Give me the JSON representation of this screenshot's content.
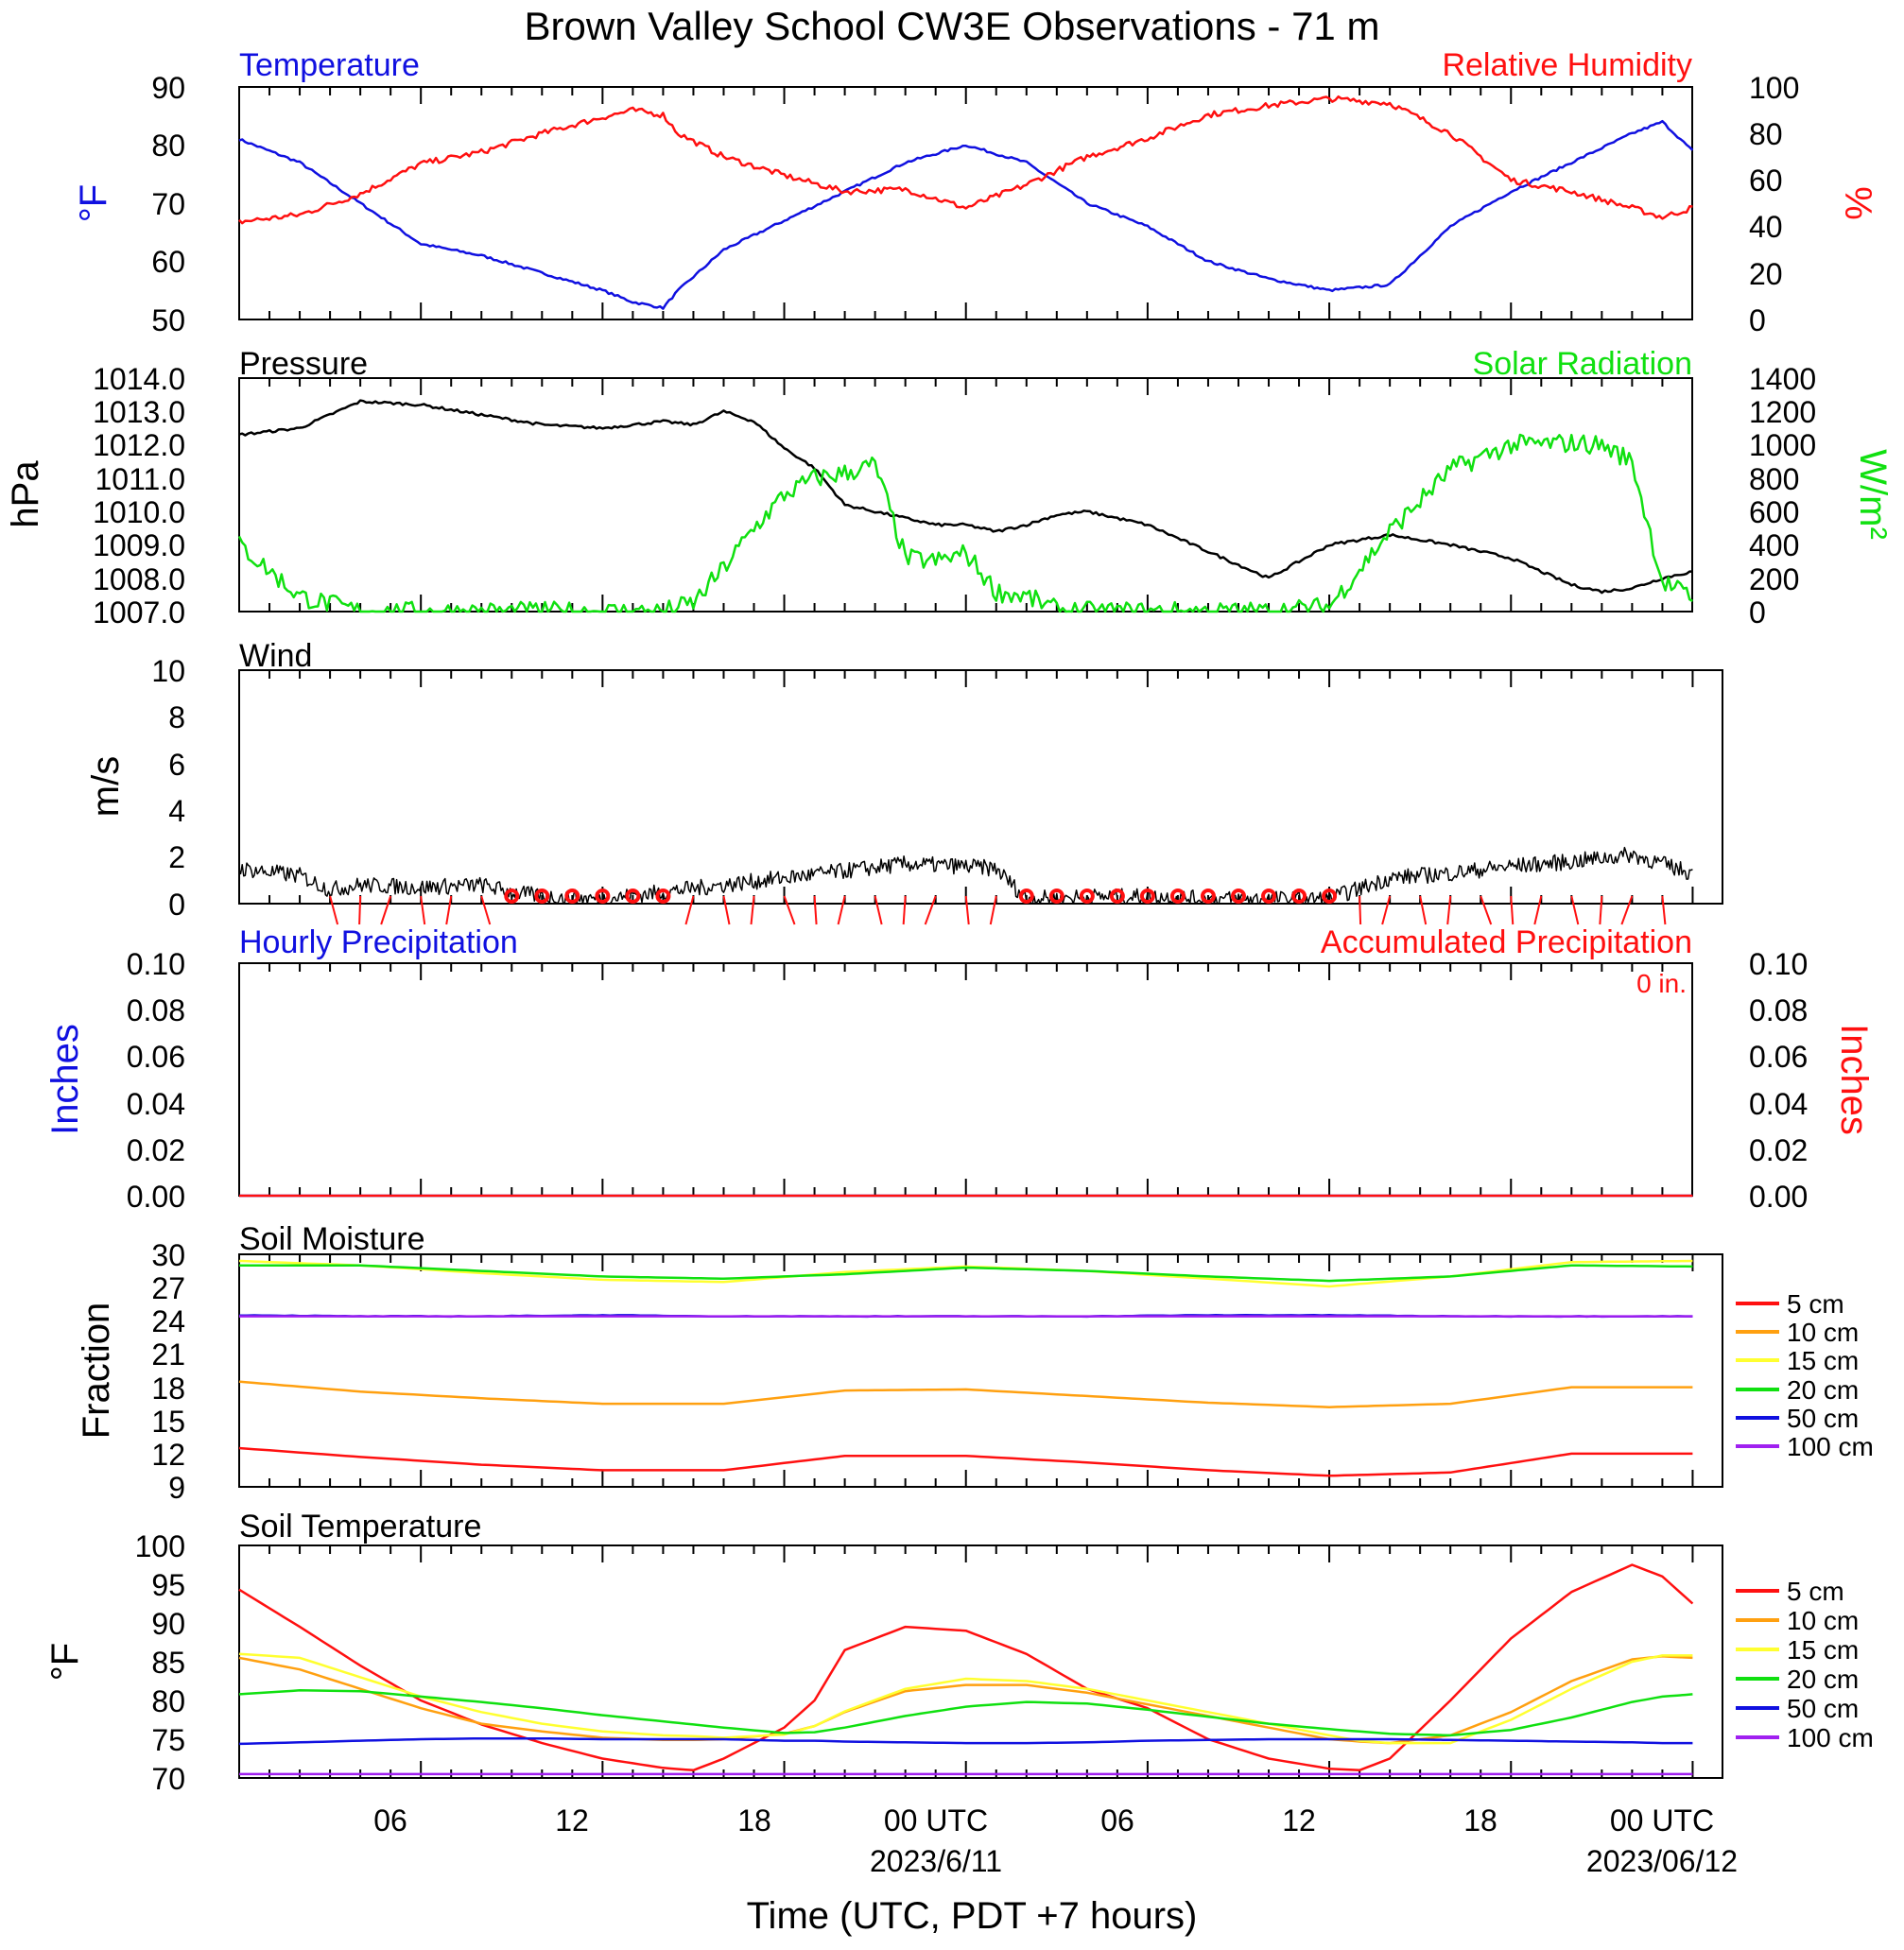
{
  "title": "Brown Valley School CW3E Observations - 71 m",
  "xlabel": "Time (UTC, PDT +7 hours)",
  "x_ticks": [
    "06",
    "12",
    "18",
    "00 UTC",
    "06",
    "12",
    "18",
    "00 UTC"
  ],
  "date_labels": [
    "2023/6/11",
    "2023/06/12"
  ],
  "panels": {
    "temp_rh": {
      "left_title": "Temperature",
      "right_title": "Relative Humidity",
      "left_unit": "°F",
      "right_unit": "%",
      "left_ticks": [
        "90",
        "80",
        "70",
        "60",
        "50"
      ],
      "right_ticks": [
        "100",
        "80",
        "60",
        "40",
        "20",
        "0"
      ]
    },
    "pressure": {
      "left_title": "Pressure",
      "right_title": "Solar Radiation",
      "left_unit": "hPa",
      "right_unit": "W/m²",
      "left_ticks": [
        "1014.0",
        "1013.0",
        "1012.0",
        "1011.0",
        "1010.0",
        "1009.0",
        "1008.0",
        "1007.0"
      ],
      "right_ticks": [
        "1400",
        "1200",
        "1000",
        "800",
        "600",
        "400",
        "200",
        "0"
      ]
    },
    "wind": {
      "left_title": "Wind",
      "left_unit": "m/s",
      "left_ticks": [
        "10",
        "8",
        "6",
        "4",
        "2",
        "0"
      ]
    },
    "precip": {
      "left_title": "Hourly Precipitation",
      "right_title": "Accumulated Precipitation",
      "annotation": "0 in.",
      "left_unit": "Inches",
      "right_unit": "Inches",
      "left_ticks": [
        "0.10",
        "0.08",
        "0.06",
        "0.04",
        "0.02",
        "0.00"
      ],
      "right_ticks": [
        "0.10",
        "0.08",
        "0.06",
        "0.04",
        "0.02",
        "0.00"
      ]
    },
    "soil_moisture": {
      "left_title": "Soil Moisture",
      "left_unit": "Fraction",
      "left_ticks": [
        "30",
        "27",
        "24",
        "21",
        "18",
        "15",
        "12",
        "9"
      ],
      "legend": [
        "5 cm",
        "10 cm",
        "15 cm",
        "20 cm",
        "50 cm",
        "100 cm"
      ]
    },
    "soil_temp": {
      "left_title": "Soil Temperature",
      "left_unit": "°F",
      "left_ticks": [
        "100",
        "95",
        "90",
        "85",
        "80",
        "75",
        "70"
      ],
      "legend": [
        "5 cm",
        "10 cm",
        "15 cm",
        "20 cm",
        "50 cm",
        "100 cm"
      ]
    }
  },
  "colors": {
    "temperature": "#1010e0",
    "rh": "#ff1010",
    "pressure": "#000000",
    "solar": "#10e010",
    "wind": "#000000",
    "barb": "#ff1010",
    "precip_hourly": "#1010e0",
    "precip_accum": "#ff1010",
    "depth": [
      "#ff1010",
      "#ffa010",
      "#ffff30",
      "#10e010",
      "#1010e0",
      "#a020f0"
    ]
  },
  "chart_data": [
    {
      "type": "line",
      "name": "temperature_rh",
      "x_hours": [
        0,
        2,
        4,
        6,
        8,
        10,
        12,
        13,
        14,
        14.5,
        16,
        18,
        20,
        22,
        24,
        26,
        28,
        30,
        32,
        34,
        36,
        38,
        40,
        42,
        44,
        46,
        47,
        48
      ],
      "series": [
        {
          "name": "Temperature",
          "axis": "left",
          "ylim": [
            50,
            90
          ],
          "values": [
            81,
            77,
            70,
            63,
            61,
            58,
            55,
            53,
            52,
            55,
            62,
            67,
            72,
            77,
            80,
            77,
            70,
            66,
            60,
            57,
            55,
            56,
            66,
            72,
            77,
            82,
            84,
            79
          ]
        },
        {
          "name": "Relative Humidity",
          "axis": "right",
          "ylim": [
            0,
            100
          ],
          "values": [
            42,
            45,
            54,
            67,
            72,
            80,
            87,
            90,
            88,
            80,
            70,
            62,
            55,
            56,
            48,
            58,
            70,
            78,
            88,
            92,
            95,
            93,
            80,
            60,
            55,
            48,
            44,
            48
          ]
        }
      ]
    },
    {
      "type": "line",
      "name": "pressure_solar",
      "x_hours": [
        0,
        2,
        4,
        6,
        8,
        10,
        12,
        14,
        15,
        16,
        17,
        18,
        19,
        20,
        21,
        22,
        23,
        24,
        25,
        26,
        27,
        28,
        30,
        32,
        34,
        36,
        38,
        40,
        42,
        44,
        45,
        46,
        47,
        48
      ],
      "series": [
        {
          "name": "Pressure",
          "axis": "left",
          "ylim": [
            1007,
            1014
          ],
          "values": [
            1012.3,
            1012.5,
            1013.3,
            1013.2,
            1012.9,
            1012.6,
            1012.5,
            1012.7,
            1012.6,
            1013.0,
            1012.7,
            1011.9,
            1011.3,
            1010.2,
            1010.0,
            1009.8,
            1009.6,
            1009.6,
            1009.4,
            1009.6,
            1009.9,
            1010.0,
            1009.6,
            1008.8,
            1008.0,
            1009.0,
            1009.3,
            1009.0,
            1008.6,
            1007.8,
            1007.6,
            1007.7,
            1008.0,
            1008.2
          ]
        },
        {
          "name": "Solar Radiation",
          "axis": "right",
          "ylim": [
            0,
            1400
          ],
          "values": [
            400,
            90,
            0,
            0,
            0,
            0,
            0,
            0,
            50,
            260,
            500,
            700,
            800,
            830,
            880,
            320,
            300,
            350,
            120,
            90,
            10,
            0,
            0,
            0,
            0,
            30,
            480,
            850,
            1000,
            1010,
            1000,
            900,
            180,
            80
          ]
        }
      ]
    },
    {
      "type": "line",
      "name": "wind",
      "ylim": [
        0,
        10
      ],
      "x_hours": [
        0,
        2,
        3,
        4,
        6,
        8,
        9,
        10,
        12,
        14,
        16,
        18,
        20,
        22,
        24,
        25,
        26,
        28,
        30,
        32,
        34,
        36,
        38,
        40,
        42,
        44,
        46,
        48
      ],
      "series": [
        {
          "name": "Wind speed",
          "values": [
            1.5,
            1.2,
            0.6,
            0.8,
            0.7,
            0.8,
            0.5,
            0.3,
            0.2,
            0.5,
            0.8,
            1.1,
            1.4,
            1.7,
            1.6,
            1.5,
            0.2,
            0.3,
            0.3,
            0.2,
            0.2,
            0.2,
            1.1,
            1.3,
            1.6,
            1.8,
            2.1,
            1.3
          ]
        }
      ]
    },
    {
      "type": "line",
      "name": "precipitation",
      "ylim": [
        0,
        0.1
      ],
      "x_hours": [
        0,
        48
      ],
      "series": [
        {
          "name": "Hourly Precipitation",
          "values": [
            0,
            0
          ]
        },
        {
          "name": "Accumulated Precipitation",
          "values": [
            0,
            0
          ]
        }
      ]
    },
    {
      "type": "line",
      "name": "soil_moisture",
      "ylim": [
        9,
        30
      ],
      "x_hours": [
        0,
        4,
        8,
        12,
        16,
        20,
        24,
        28,
        32,
        36,
        40,
        44,
        48
      ],
      "series": [
        {
          "name": "5 cm",
          "values": [
            12.5,
            11.7,
            11.0,
            10.5,
            10.5,
            11.8,
            11.8,
            11.2,
            10.5,
            10.0,
            10.3,
            12.0,
            12.0
          ]
        },
        {
          "name": "10 cm",
          "values": [
            18.5,
            17.6,
            17.0,
            16.5,
            16.5,
            17.7,
            17.8,
            17.2,
            16.6,
            16.2,
            16.5,
            18.0,
            18.0
          ]
        },
        {
          "name": "15 cm",
          "values": [
            29.4,
            29.0,
            28.3,
            27.7,
            27.5,
            28.4,
            28.9,
            28.5,
            27.8,
            27.1,
            28.0,
            29.3,
            29.4
          ]
        },
        {
          "name": "20 cm",
          "values": [
            29.0,
            29.0,
            28.5,
            28.0,
            27.8,
            28.2,
            28.8,
            28.5,
            28.0,
            27.6,
            28.0,
            29.0,
            28.9
          ]
        },
        {
          "name": "50 cm",
          "values": [
            24.5,
            24.4,
            24.4,
            24.5,
            24.4,
            24.4,
            24.4,
            24.4,
            24.5,
            24.5,
            24.4,
            24.4,
            24.4
          ]
        },
        {
          "name": "100 cm",
          "values": [
            24.4,
            24.4,
            24.4,
            24.4,
            24.4,
            24.4,
            24.4,
            24.4,
            24.4,
            24.4,
            24.4,
            24.4,
            24.4
          ]
        }
      ]
    },
    {
      "type": "line",
      "name": "soil_temperature",
      "ylim": [
        70,
        100
      ],
      "x_hours": [
        0,
        2,
        4,
        6,
        8,
        10,
        12,
        14,
        15,
        16,
        18,
        19,
        20,
        22,
        24,
        26,
        28,
        30,
        32,
        34,
        36,
        37,
        38,
        40,
        42,
        44,
        46,
        47,
        48
      ],
      "series": [
        {
          "name": "5 cm",
          "values": [
            94.3,
            89.5,
            84.5,
            80.0,
            76.9,
            74.5,
            72.5,
            71.3,
            71.0,
            72.5,
            76.5,
            80.0,
            86.5,
            89.5,
            89.0,
            86.0,
            81.5,
            79.0,
            75.0,
            72.5,
            71.2,
            71.0,
            72.5,
            80.0,
            88.0,
            94.0,
            97.5,
            96.0,
            92.5
          ]
        },
        {
          "name": "10 cm",
          "values": [
            85.5,
            84.0,
            81.5,
            79.0,
            77.0,
            76.0,
            75.2,
            74.9,
            74.9,
            75.0,
            75.7,
            76.7,
            78.5,
            81.2,
            82.0,
            82.0,
            81.0,
            79.5,
            78.0,
            76.5,
            75.0,
            74.7,
            74.5,
            75.5,
            78.5,
            82.5,
            85.3,
            85.7,
            85.5
          ]
        },
        {
          "name": "15 cm",
          "values": [
            86.0,
            85.5,
            83.0,
            80.5,
            78.5,
            77.0,
            76.0,
            75.5,
            75.4,
            75.2,
            75.6,
            76.7,
            78.6,
            81.5,
            82.8,
            82.5,
            81.5,
            80.0,
            78.5,
            77.0,
            75.5,
            74.8,
            74.5,
            74.5,
            77.5,
            81.5,
            85.0,
            85.8,
            85.8
          ]
        },
        {
          "name": "20 cm",
          "values": [
            80.8,
            81.3,
            81.2,
            80.5,
            79.8,
            79.0,
            78.1,
            77.3,
            76.9,
            76.5,
            75.8,
            75.9,
            76.5,
            78.0,
            79.2,
            79.8,
            79.6,
            78.8,
            77.9,
            77.0,
            76.3,
            76.0,
            75.7,
            75.5,
            76.2,
            77.8,
            79.8,
            80.5,
            80.8
          ]
        },
        {
          "name": "50 cm",
          "values": [
            74.4,
            74.6,
            74.8,
            75.0,
            75.1,
            75.1,
            75.0,
            75.0,
            75.0,
            75.0,
            74.8,
            74.8,
            74.7,
            74.6,
            74.5,
            74.5,
            74.6,
            74.8,
            74.9,
            75.0,
            75.0,
            75.0,
            75.0,
            74.9,
            74.8,
            74.7,
            74.6,
            74.5,
            74.5
          ]
        },
        {
          "name": "100 cm",
          "values": [
            70.5,
            70.5,
            70.5,
            70.5,
            70.5,
            70.5,
            70.5,
            70.5,
            70.5,
            70.5,
            70.5,
            70.5,
            70.5,
            70.5,
            70.5,
            70.5,
            70.5,
            70.5,
            70.5,
            70.5,
            70.5,
            70.5,
            70.5,
            70.5,
            70.5,
            70.5,
            70.5,
            70.5,
            70.5
          ]
        }
      ]
    }
  ]
}
